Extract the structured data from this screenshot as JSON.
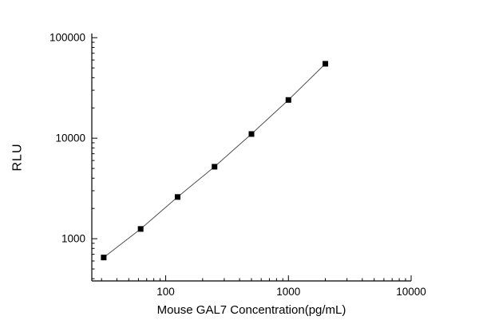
{
  "chart": {
    "ylabel": "RLU",
    "xlabel": "Mouse GAL7 Concentration(pg/mL)"
  },
  "chart_data": {
    "type": "scatter",
    "title": "",
    "xlabel": "Mouse GAL7 Concentration(pg/mL)",
    "ylabel": "RLU",
    "xscale": "log",
    "yscale": "log",
    "x": [
      31.25,
      62.5,
      125,
      250,
      500,
      1000,
      2000
    ],
    "y": [
      650,
      1250,
      2600,
      5200,
      11000,
      24000,
      55000
    ],
    "xlim": [
      25,
      10000
    ],
    "ylim": [
      380,
      110000
    ],
    "x_major_ticks": [
      100,
      1000,
      10000
    ],
    "y_major_ticks": [
      1000,
      10000,
      100000
    ],
    "marker": "square",
    "line": true,
    "grid": false,
    "legend": "none",
    "colors": {
      "marker": "#000000",
      "line": "#4d4d4d",
      "axis": "#000000",
      "background": "#ffffff"
    }
  }
}
